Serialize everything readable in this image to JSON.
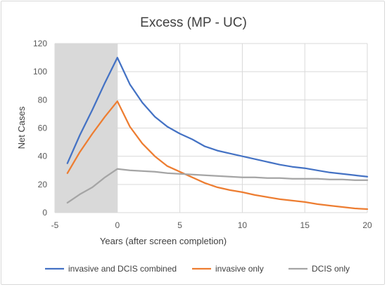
{
  "chart_data": {
    "type": "line",
    "title": "Excess (MP - UC)",
    "xlabel": "Years (after screen completion)",
    "ylabel": "Net Cases",
    "xlim": [
      -5,
      20
    ],
    "ylim": [
      0,
      120
    ],
    "x_ticks": [
      -5,
      0,
      5,
      10,
      15,
      20
    ],
    "y_ticks": [
      0,
      20,
      40,
      60,
      80,
      100,
      120
    ],
    "grid": "vertical and horizontal",
    "shaded_region": {
      "x_from": -5,
      "x_to": 0,
      "color": "#d9d9d9"
    },
    "legend_position": "bottom",
    "series": [
      {
        "name": "invasive and DCIS combined",
        "color": "#4472c4",
        "x": [
          -4,
          -3,
          -2,
          -1,
          0,
          1,
          2,
          3,
          4,
          5,
          6,
          7,
          8,
          9,
          10,
          11,
          12,
          13,
          14,
          15,
          16,
          17,
          18,
          19,
          20
        ],
        "values": [
          35,
          55,
          73,
          92,
          110,
          91,
          78,
          68,
          61,
          56,
          52,
          47,
          44,
          42,
          40,
          38,
          36,
          34,
          32.5,
          31.5,
          30,
          28.5,
          27.5,
          26.5,
          25.5
        ]
      },
      {
        "name": "invasive only",
        "color": "#ed7d31",
        "x": [
          -4,
          -3,
          -2,
          -1,
          0,
          1,
          2,
          3,
          4,
          5,
          6,
          7,
          8,
          9,
          10,
          11,
          12,
          13,
          14,
          15,
          16,
          17,
          18,
          19,
          20
        ],
        "values": [
          28,
          43,
          56,
          68,
          79,
          61,
          49,
          40,
          33,
          29,
          25,
          21,
          18,
          16,
          14.5,
          12.5,
          11,
          9.5,
          8.5,
          7.5,
          6,
          5,
          4,
          3,
          2.5
        ]
      },
      {
        "name": "DCIS only",
        "color": "#a5a5a5",
        "x": [
          -4,
          -3,
          -2,
          -1,
          0,
          1,
          2,
          3,
          4,
          5,
          6,
          7,
          8,
          9,
          10,
          11,
          12,
          13,
          14,
          15,
          16,
          17,
          18,
          19,
          20
        ],
        "values": [
          7,
          13,
          18,
          25,
          31,
          30,
          29.5,
          29,
          28,
          27.5,
          27,
          26.5,
          26,
          25.5,
          25,
          25,
          24.5,
          24.5,
          24,
          24,
          24,
          23.5,
          23.5,
          23,
          23
        ]
      }
    ]
  }
}
